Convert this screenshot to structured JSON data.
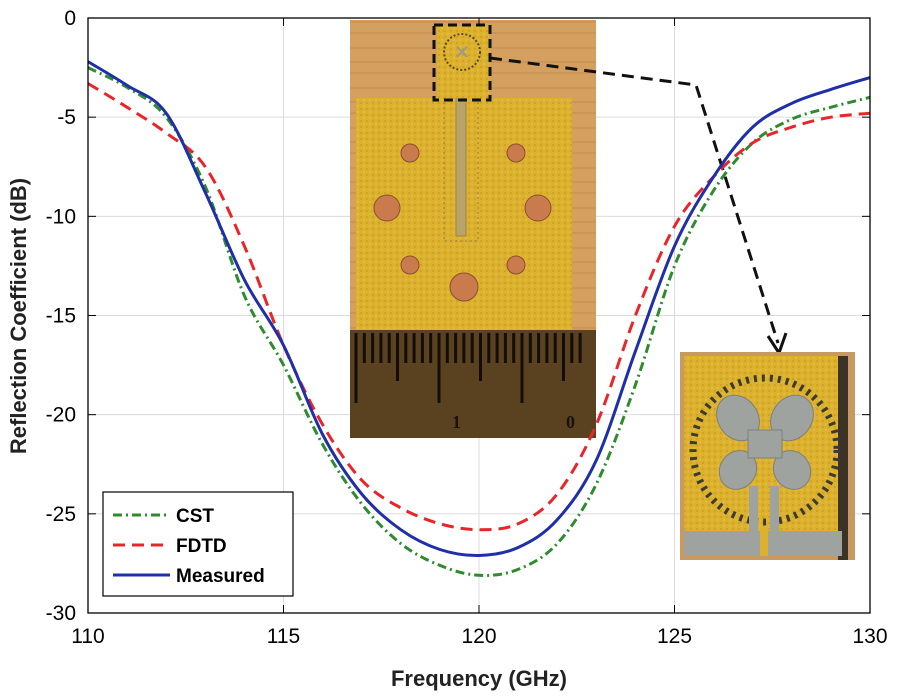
{
  "chart_data": {
    "type": "line",
    "xlabel": "Frequency (GHz)",
    "ylabel": "Reflection Coefficient (dB)",
    "xlim": [
      110,
      130
    ],
    "ylim": [
      -30,
      0
    ],
    "xticks": [
      "110",
      "115",
      "120",
      "125",
      "130"
    ],
    "yticks": [
      "0",
      "-5",
      "-10",
      "-15",
      "-20",
      "-25",
      "-30"
    ],
    "grid": true,
    "legend_position": "bottom-left",
    "series": [
      {
        "name": "CST",
        "color": "#2e8b2e",
        "dash": "dash-dot",
        "points": [
          [
            110,
            -2.5
          ],
          [
            111,
            -3.5
          ],
          [
            112,
            -5
          ],
          [
            113,
            -8.5
          ],
          [
            114,
            -14
          ],
          [
            115,
            -17.5
          ],
          [
            116,
            -21.5
          ],
          [
            117,
            -24.5
          ],
          [
            118,
            -26.5
          ],
          [
            119,
            -27.6
          ],
          [
            120,
            -28.1
          ],
          [
            121,
            -27.8
          ],
          [
            122,
            -26.5
          ],
          [
            123,
            -23.5
          ],
          [
            124,
            -18.5
          ],
          [
            125,
            -12.5
          ],
          [
            126,
            -8.7
          ],
          [
            127,
            -6.3
          ],
          [
            128,
            -5.1
          ],
          [
            129,
            -4.5
          ],
          [
            130,
            -4.0
          ]
        ]
      },
      {
        "name": "FDTD",
        "color": "#e8262a",
        "dash": "dashed",
        "points": [
          [
            110,
            -3.3
          ],
          [
            111,
            -4.5
          ],
          [
            112,
            -5.8
          ],
          [
            113,
            -7.5
          ],
          [
            114,
            -11.5
          ],
          [
            115,
            -16.5
          ],
          [
            116,
            -20.5
          ],
          [
            117,
            -23.3
          ],
          [
            118,
            -24.7
          ],
          [
            119,
            -25.5
          ],
          [
            120,
            -25.8
          ],
          [
            121,
            -25.5
          ],
          [
            122,
            -24
          ],
          [
            123,
            -20.5
          ],
          [
            124,
            -15
          ],
          [
            125,
            -10.5
          ],
          [
            126,
            -8
          ],
          [
            127,
            -6.3
          ],
          [
            128,
            -5.5
          ],
          [
            129,
            -5
          ],
          [
            130,
            -4.8
          ]
        ]
      },
      {
        "name": "Measured",
        "color": "#1f2fa8",
        "dash": "solid",
        "points": [
          [
            110,
            -2.2
          ],
          [
            111,
            -3.4
          ],
          [
            112,
            -4.8
          ],
          [
            113,
            -8.8
          ],
          [
            114,
            -13.2
          ],
          [
            115,
            -16.5
          ],
          [
            116,
            -21
          ],
          [
            117,
            -24
          ],
          [
            118,
            -25.8
          ],
          [
            119,
            -26.8
          ],
          [
            120,
            -27.1
          ],
          [
            121,
            -26.7
          ],
          [
            122,
            -25.3
          ],
          [
            123,
            -22.3
          ],
          [
            124,
            -16.8
          ],
          [
            125,
            -11.5
          ],
          [
            126,
            -8
          ],
          [
            127,
            -5.5
          ],
          [
            128,
            -4.3
          ],
          [
            129,
            -3.6
          ],
          [
            130,
            -3.0
          ]
        ]
      }
    ]
  },
  "insets": {
    "ruler_numbers": [
      "1",
      "0"
    ],
    "pcb_color": "#d8b02c",
    "wood_color": "#d29a5c"
  }
}
